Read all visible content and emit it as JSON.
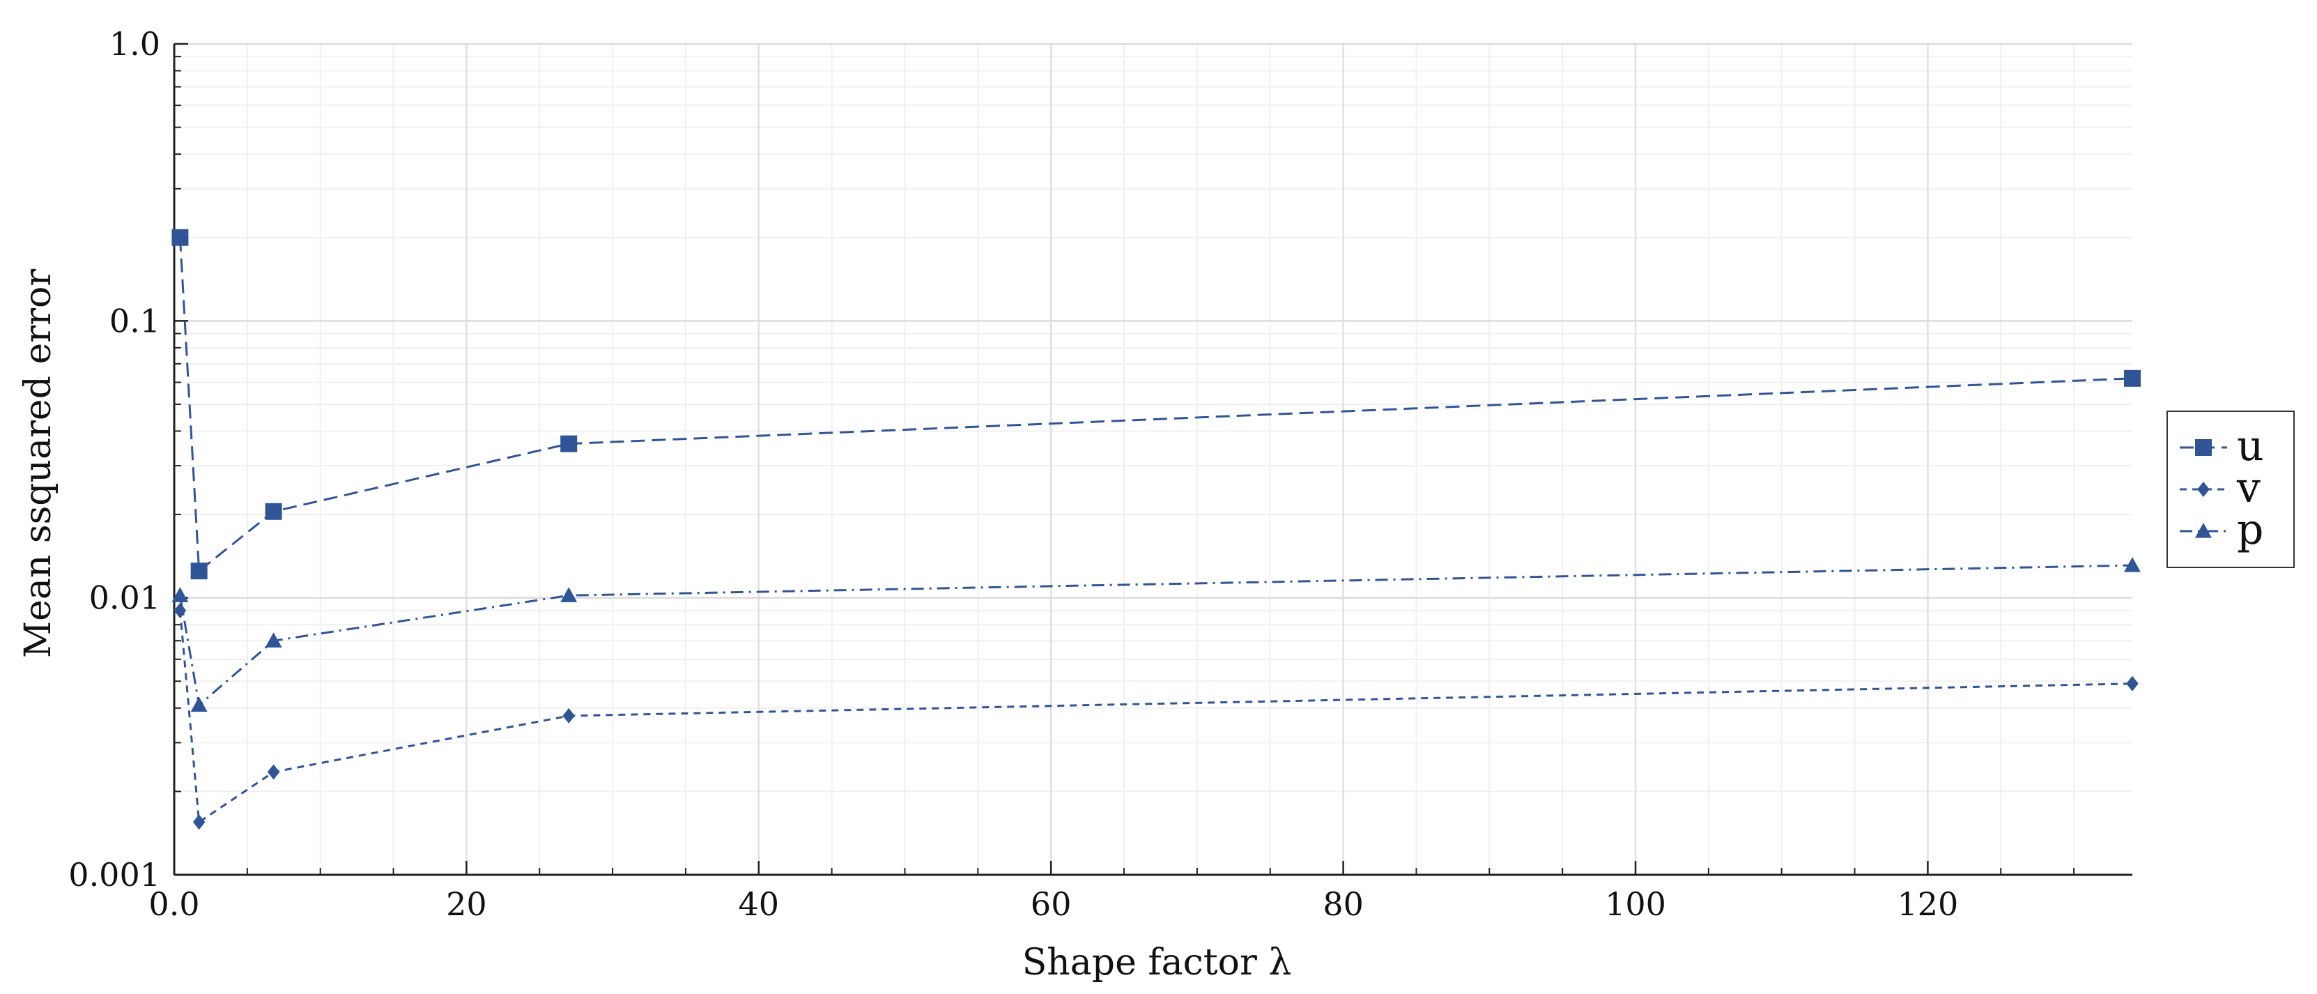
{
  "chart_data": {
    "type": "line",
    "title": "",
    "xlabel": "Shape factor λ",
    "ylabel": "Mean ssquared error",
    "xlim": [
      0,
      134
    ],
    "ylim": [
      0.001,
      1.0
    ],
    "yscale": "log",
    "x_ticks": [
      0,
      20,
      40,
      60,
      80,
      100,
      120
    ],
    "x_tick_labels": [
      "0.0",
      "20",
      "40",
      "60",
      "80",
      "100",
      "120"
    ],
    "y_ticks": [
      0.001,
      0.01,
      0.1,
      1.0
    ],
    "y_tick_labels": [
      "0.001",
      "0.01",
      "0.1",
      "1.0"
    ],
    "grid": true,
    "legend_position": "right",
    "line_color": "#2f5597",
    "series": [
      {
        "name": "u",
        "marker": "square",
        "dash": "dashed",
        "x": [
          0.4,
          1.7,
          6.8,
          27.0,
          134.0
        ],
        "y": [
          0.2,
          0.0125,
          0.0205,
          0.036,
          0.062
        ]
      },
      {
        "name": "v",
        "marker": "diamond",
        "dash": "short-dashed",
        "x": [
          0.4,
          1.7,
          6.8,
          27.0,
          134.0
        ],
        "y": [
          0.009,
          0.00155,
          0.00235,
          0.00375,
          0.0049
        ]
      },
      {
        "name": "p",
        "marker": "triangle",
        "dash": "dash-dot",
        "x": [
          0.4,
          1.7,
          6.8,
          27.0,
          134.0
        ],
        "y": [
          0.0102,
          0.0041,
          0.007,
          0.0102,
          0.0131
        ]
      }
    ]
  }
}
